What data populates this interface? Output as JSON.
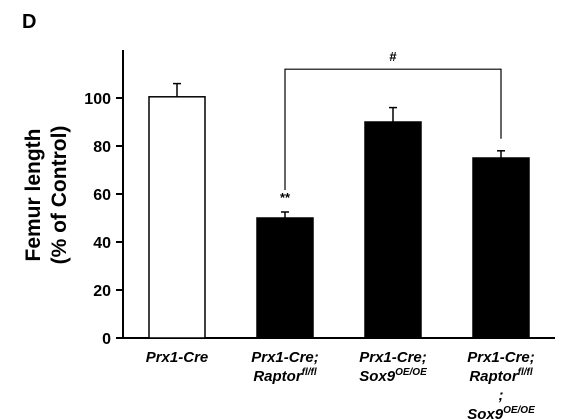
{
  "panel_label": "D",
  "chart_data": {
    "type": "bar",
    "ylabel_line1": "Femur length",
    "ylabel_line2": "(% of Control)",
    "ylim": [
      0,
      120
    ],
    "yticks": [
      0,
      20,
      40,
      60,
      80,
      100
    ],
    "categories": [
      {
        "lines": [
          {
            "main": "Prx1-Cre",
            "sup": ""
          }
        ]
      },
      {
        "lines": [
          {
            "main": "Prx1-Cre;",
            "sup": ""
          },
          {
            "main": "Raptor",
            "sup": "fl/fl"
          }
        ]
      },
      {
        "lines": [
          {
            "main": "Prx1-Cre;",
            "sup": ""
          },
          {
            "main": "Sox9",
            "sup": "OE/OE"
          }
        ]
      },
      {
        "lines": [
          {
            "main": "Prx1-Cre;",
            "sup": ""
          },
          {
            "main": "Raptor",
            "sup": "fl/fl"
          },
          {
            "main": ";",
            "sup": ""
          },
          {
            "main": "Sox9",
            "sup": "OE/OE"
          }
        ]
      }
    ],
    "values": [
      100.5,
      50,
      90,
      75
    ],
    "errors": [
      5.5,
      2.5,
      6,
      3
    ],
    "fills": [
      "#ffffff",
      "#000000",
      "#000000",
      "#000000"
    ],
    "annotations": [
      {
        "bar": 1,
        "text": "**"
      }
    ],
    "bracket": {
      "from": 1,
      "to": 3,
      "y": 112,
      "text": "#"
    }
  }
}
